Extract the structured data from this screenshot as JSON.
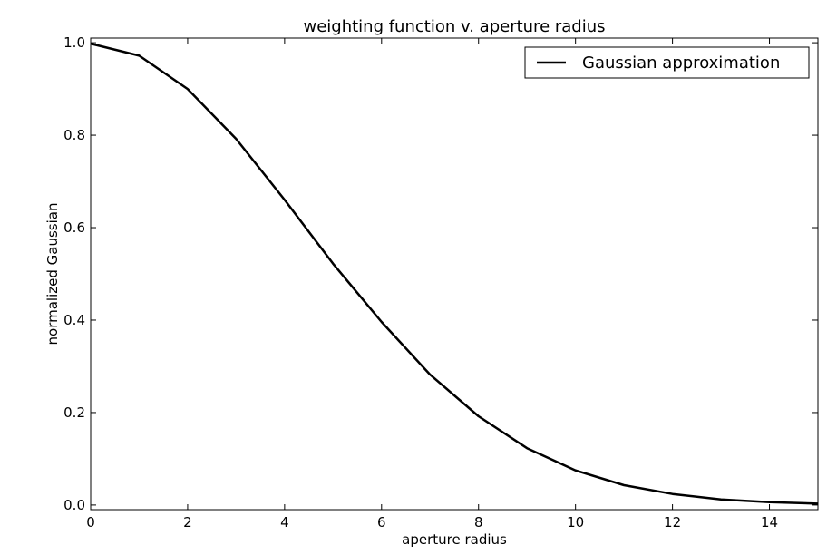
{
  "chart_data": {
    "type": "line",
    "title": "weighting function v. aperture radius",
    "xlabel": "aperture radius",
    "ylabel": "normalized Gaussian",
    "xlim": [
      0,
      15
    ],
    "ylim": [
      -0.01,
      1.01
    ],
    "xticks": [
      0,
      2,
      4,
      6,
      8,
      10,
      12,
      14
    ],
    "yticks": [
      0.0,
      0.2,
      0.4,
      0.6,
      0.8,
      1.0
    ],
    "xtick_labels": [
      "0",
      "2",
      "4",
      "6",
      "8",
      "10",
      "12",
      "14"
    ],
    "ytick_labels": [
      "0.0",
      "0.2",
      "0.4",
      "0.6",
      "0.8",
      "1.0"
    ],
    "grid": false,
    "legend_position": "top-right",
    "series": [
      {
        "name": "Gaussian approximation",
        "color": "#000000",
        "x": [
          0,
          1,
          2,
          3,
          4,
          5,
          6,
          7,
          8,
          9,
          10,
          11,
          12,
          13,
          14,
          15
        ],
        "y": [
          0.998,
          0.972,
          0.9,
          0.792,
          0.66,
          0.522,
          0.396,
          0.282,
          0.192,
          0.123,
          0.075,
          0.043,
          0.024,
          0.012,
          0.006,
          0.003
        ]
      }
    ]
  }
}
